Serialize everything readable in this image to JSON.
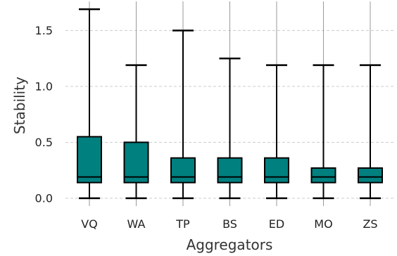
{
  "chart_data": {
    "type": "box",
    "title": "",
    "xlabel": "Aggregators",
    "ylabel": "Stability",
    "ylim": [
      -0.07,
      1.76
    ],
    "yticks": [
      "0.0",
      "0.5",
      "1.0",
      "1.5"
    ],
    "ytick_values": [
      0.0,
      0.5,
      1.0,
      1.5
    ],
    "grid": {
      "y": true,
      "x": "vertical line per category"
    },
    "box_color": "#00807f",
    "categories": [
      "VQ",
      "WA",
      "TP",
      "BS",
      "ED",
      "MO",
      "ZS"
    ],
    "boxes": [
      {
        "label": "VQ",
        "min": 0.0,
        "q1": 0.14,
        "median": 0.19,
        "q3": 0.55,
        "max": 1.69
      },
      {
        "label": "WA",
        "min": 0.0,
        "q1": 0.14,
        "median": 0.19,
        "q3": 0.5,
        "max": 1.19
      },
      {
        "label": "TP",
        "min": 0.0,
        "q1": 0.14,
        "median": 0.19,
        "q3": 0.36,
        "max": 1.5
      },
      {
        "label": "BS",
        "min": 0.0,
        "q1": 0.14,
        "median": 0.19,
        "q3": 0.36,
        "max": 1.25
      },
      {
        "label": "ED",
        "min": 0.0,
        "q1": 0.14,
        "median": 0.19,
        "q3": 0.36,
        "max": 1.19
      },
      {
        "label": "MO",
        "min": 0.0,
        "q1": 0.14,
        "median": 0.19,
        "q3": 0.27,
        "max": 1.19
      },
      {
        "label": "ZS",
        "min": 0.0,
        "q1": 0.14,
        "median": 0.19,
        "q3": 0.27,
        "max": 1.19
      }
    ]
  }
}
